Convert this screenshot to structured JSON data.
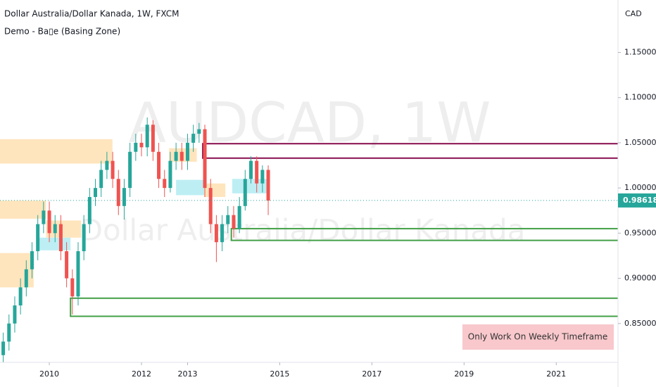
{
  "chart_data": {
    "type": "candlestick",
    "title": "Dollar Australia/Dollar Kanada, 1W, FXCM",
    "subtitle": "Demo - Ba▯e (Basing Zone)",
    "watermark": "AUDCAD, 1W",
    "watermark_subtitle": "Dollar Australia/Dollar Kanada",
    "currency": "CAD",
    "annotation": "Only Work On Weekly Timeframe",
    "last_price": 0.98618,
    "up_color": "#26a69a",
    "down_color": "#ef5350",
    "grid": false,
    "xlim": [
      2008.93,
      2022.34
    ],
    "xticks": [
      2010,
      2012,
      2013,
      2015,
      2017,
      2019,
      2021
    ],
    "ylim": [
      0.807,
      1.208
    ],
    "yticks": [
      {
        "value": 0.85,
        "label": "0.85000"
      },
      {
        "value": 0.9,
        "label": "0.90000"
      },
      {
        "value": 0.95,
        "label": "0.95000"
      },
      {
        "value": 1.0,
        "label": "1.00000"
      },
      {
        "value": 1.05,
        "label": "1.05000"
      },
      {
        "value": 1.1,
        "label": "1.10000"
      },
      {
        "value": 1.15,
        "label": "1.15000"
      }
    ],
    "x": [
      2009.0,
      2009.125,
      2009.25,
      2009.375,
      2009.5,
      2009.625,
      2009.75,
      2009.875,
      2010.0,
      2010.125,
      2010.25,
      2010.375,
      2010.5,
      2010.625,
      2010.75,
      2010.875,
      2011.0,
      2011.125,
      2011.25,
      2011.375,
      2011.5,
      2011.625,
      2011.75,
      2011.875,
      2012.0,
      2012.125,
      2012.25,
      2012.375,
      2012.5,
      2012.625,
      2012.75,
      2012.875,
      2013.0,
      2013.125,
      2013.25,
      2013.375,
      2013.5,
      2013.625,
      2013.75,
      2013.875,
      2014.0,
      2014.125,
      2014.25,
      2014.375,
      2014.5,
      2014.625,
      2014.75
    ],
    "open": [
      0.815,
      0.83,
      0.85,
      0.87,
      0.89,
      0.91,
      0.93,
      0.96,
      0.975,
      0.95,
      0.96,
      0.93,
      0.9,
      0.88,
      0.93,
      0.96,
      0.99,
      1.0,
      1.02,
      1.03,
      1.01,
      0.98,
      1.0,
      1.04,
      1.05,
      1.045,
      1.07,
      1.04,
      1.01,
      1.0,
      1.03,
      1.04,
      1.03,
      1.05,
      1.06,
      1.065,
      1.0,
      0.96,
      0.94,
      0.96,
      0.97,
      0.955,
      0.98,
      1.01,
      1.03,
      1.005,
      1.02
    ],
    "high": [
      0.84,
      0.86,
      0.88,
      0.9,
      0.92,
      0.94,
      0.97,
      0.985,
      0.985,
      0.97,
      0.97,
      0.94,
      0.91,
      0.94,
      0.97,
      1.0,
      1.01,
      1.03,
      1.04,
      1.04,
      1.02,
      1.01,
      1.05,
      1.06,
      1.06,
      1.078,
      1.075,
      1.05,
      1.02,
      1.04,
      1.05,
      1.05,
      1.06,
      1.07,
      1.072,
      1.07,
      1.01,
      0.97,
      0.97,
      0.98,
      0.98,
      0.99,
      1.02,
      1.035,
      1.035,
      1.025,
      1.025
    ],
    "low": [
      0.805,
      0.82,
      0.84,
      0.86,
      0.88,
      0.9,
      0.92,
      0.95,
      0.94,
      0.94,
      0.92,
      0.89,
      0.86,
      0.87,
      0.92,
      0.95,
      0.98,
      0.99,
      1.01,
      1.0,
      0.97,
      0.965,
      0.99,
      1.03,
      1.035,
      1.035,
      1.03,
      1.0,
      0.99,
      0.995,
      1.02,
      1.02,
      1.02,
      1.04,
      1.05,
      0.99,
      0.95,
      0.918,
      0.93,
      0.95,
      0.945,
      0.95,
      0.975,
      1.005,
      0.995,
      0.995,
      0.97
    ],
    "close": [
      0.83,
      0.85,
      0.87,
      0.89,
      0.91,
      0.93,
      0.96,
      0.975,
      0.95,
      0.96,
      0.93,
      0.9,
      0.88,
      0.93,
      0.96,
      0.99,
      1.0,
      1.02,
      1.03,
      1.01,
      0.98,
      1.0,
      1.04,
      1.05,
      1.045,
      1.07,
      1.04,
      1.01,
      1.0,
      1.03,
      1.04,
      1.03,
      1.05,
      1.06,
      1.065,
      1.0,
      0.96,
      0.94,
      0.96,
      0.97,
      0.955,
      0.98,
      1.01,
      1.03,
      1.005,
      1.02,
      0.986
    ],
    "zones": [
      {
        "from": 2008.93,
        "to": 2011.37,
        "top": 1.054,
        "bottom": 1.027,
        "color": "#ffe0b2",
        "style": "fill"
      },
      {
        "from": 2008.93,
        "to": 2009.93,
        "top": 0.986,
        "bottom": 0.966,
        "color": "#ffe0b2",
        "style": "fill"
      },
      {
        "from": 2009.93,
        "to": 2010.69,
        "top": 0.964,
        "bottom": 0.945,
        "color": "#ffe0b2",
        "style": "fill"
      },
      {
        "from": 2008.93,
        "to": 2009.66,
        "top": 0.928,
        "bottom": 0.89,
        "color": "#ffe0b2",
        "style": "fill"
      },
      {
        "from": 2009.77,
        "to": 2010.46,
        "top": 0.945,
        "bottom": 0.931,
        "color": "#b2ebf2",
        "style": "fill"
      },
      {
        "from": 2012.6,
        "to": 2013.2,
        "top": 1.044,
        "bottom": 1.029,
        "color": "#ffe0b2",
        "style": "fill"
      },
      {
        "from": 2012.75,
        "to": 2013.36,
        "top": 1.009,
        "bottom": 0.992,
        "color": "#b2ebf2",
        "style": "fill"
      },
      {
        "from": 2013.36,
        "to": 2013.82,
        "top": 1.005,
        "bottom": 0.99,
        "color": "#ffe0b2",
        "style": "fill"
      },
      {
        "from": 2013.97,
        "to": 2014.73,
        "top": 1.01,
        "bottom": 0.994,
        "color": "#b2ebf2",
        "style": "fill"
      },
      {
        "from": 2013.33,
        "top": 1.049,
        "bottom": 1.033,
        "color": "#880e4f",
        "style": "outline",
        "extend": true
      },
      {
        "from": 2013.95,
        "top": 0.955,
        "bottom": 0.942,
        "color": "#43a047",
        "style": "outline",
        "extend": true
      },
      {
        "from": 2010.46,
        "top": 0.878,
        "bottom": 0.858,
        "color": "#43a047",
        "style": "outline",
        "extend": true
      }
    ]
  }
}
